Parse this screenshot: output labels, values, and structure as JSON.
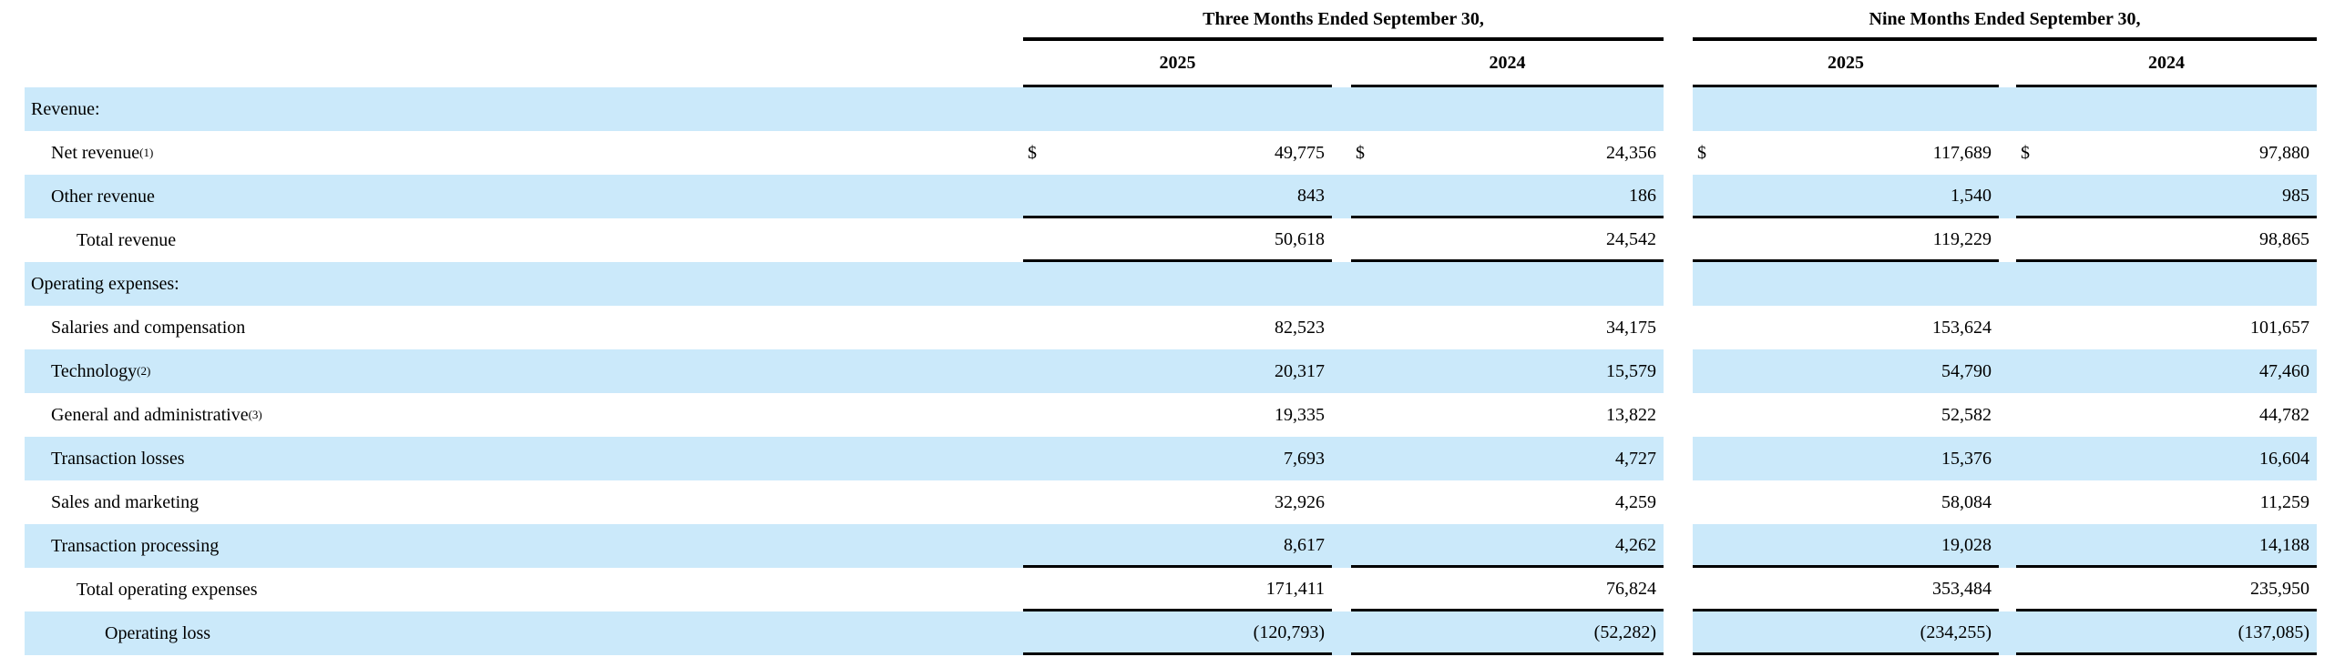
{
  "colors": {
    "highlight": "#cbe9fa",
    "rule": "#000000",
    "background": "#ffffff"
  },
  "header": {
    "groups": [
      {
        "title": "Three Months Ended September 30,",
        "years": [
          "2025",
          "2024"
        ]
      },
      {
        "title": "Nine Months Ended September 30,",
        "years": [
          "2025",
          "2024"
        ]
      }
    ]
  },
  "table": {
    "currency_symbol": "$",
    "rows": [
      {
        "label": "Revenue:",
        "sup": "",
        "indent": 0,
        "highlight": true,
        "section": true,
        "dollar": false,
        "rule_below": false,
        "values": [
          "",
          "",
          "",
          ""
        ]
      },
      {
        "label": "Net revenue",
        "sup": "(1)",
        "indent": 1,
        "highlight": false,
        "section": false,
        "dollar": true,
        "rule_below": false,
        "values": [
          "49,775",
          "24,356",
          "117,689",
          "97,880"
        ]
      },
      {
        "label": "Other revenue",
        "sup": "",
        "indent": 1,
        "highlight": true,
        "section": false,
        "dollar": false,
        "rule_below": true,
        "values": [
          "843",
          "186",
          "1,540",
          "985"
        ]
      },
      {
        "label": "Total revenue",
        "sup": "",
        "indent": 2,
        "highlight": false,
        "section": false,
        "dollar": false,
        "rule_below": true,
        "values": [
          "50,618",
          "24,542",
          "119,229",
          "98,865"
        ]
      },
      {
        "label": "Operating expenses:",
        "sup": "",
        "indent": 0,
        "highlight": true,
        "section": true,
        "dollar": false,
        "rule_below": false,
        "values": [
          "",
          "",
          "",
          ""
        ]
      },
      {
        "label": "Salaries and compensation",
        "sup": "",
        "indent": 1,
        "highlight": false,
        "section": false,
        "dollar": false,
        "rule_below": false,
        "values": [
          "82,523",
          "34,175",
          "153,624",
          "101,657"
        ]
      },
      {
        "label": "Technology",
        "sup": "(2)",
        "indent": 1,
        "highlight": true,
        "section": false,
        "dollar": false,
        "rule_below": false,
        "values": [
          "20,317",
          "15,579",
          "54,790",
          "47,460"
        ]
      },
      {
        "label": "General and administrative",
        "sup": "(3)",
        "indent": 1,
        "highlight": false,
        "section": false,
        "dollar": false,
        "rule_below": false,
        "values": [
          "19,335",
          "13,822",
          "52,582",
          "44,782"
        ]
      },
      {
        "label": "Transaction losses",
        "sup": "",
        "indent": 1,
        "highlight": true,
        "section": false,
        "dollar": false,
        "rule_below": false,
        "values": [
          "7,693",
          "4,727",
          "15,376",
          "16,604"
        ]
      },
      {
        "label": "Sales and marketing",
        "sup": "",
        "indent": 1,
        "highlight": false,
        "section": false,
        "dollar": false,
        "rule_below": false,
        "values": [
          "32,926",
          "4,259",
          "58,084",
          "11,259"
        ]
      },
      {
        "label": "Transaction processing",
        "sup": "",
        "indent": 1,
        "highlight": true,
        "section": false,
        "dollar": false,
        "rule_below": true,
        "values": [
          "8,617",
          "4,262",
          "19,028",
          "14,188"
        ]
      },
      {
        "label": "Total operating expenses",
        "sup": "",
        "indent": 2,
        "highlight": false,
        "section": false,
        "dollar": false,
        "rule_below": true,
        "values": [
          "171,411",
          "76,824",
          "353,484",
          "235,950"
        ]
      },
      {
        "label": "Operating loss",
        "sup": "",
        "indent": 3,
        "highlight": true,
        "section": false,
        "dollar": false,
        "rule_below": true,
        "values": [
          "(120,793)",
          "(52,282)",
          "(234,255)",
          "(137,085)"
        ]
      }
    ]
  }
}
